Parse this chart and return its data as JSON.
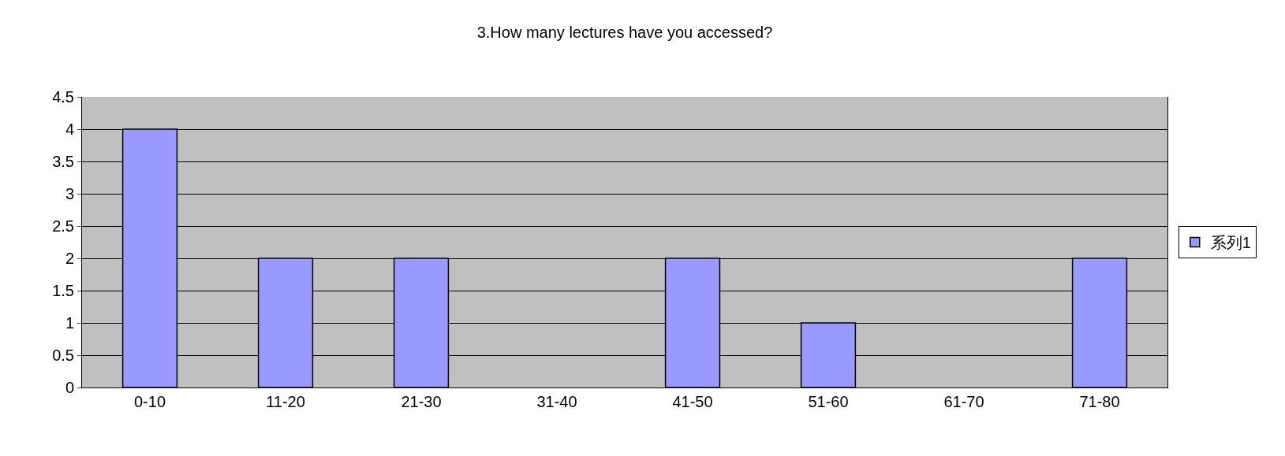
{
  "chart_data": {
    "type": "bar",
    "title": "3.How many lectures have you accessed?",
    "categories": [
      "0-10",
      "11-20",
      "21-30",
      "31-40",
      "41-50",
      "51-60",
      "61-70",
      "71-80"
    ],
    "series": [
      {
        "name": "系列1",
        "color": "#9999ff",
        "values": [
          4,
          2,
          2,
          0,
          2,
          1,
          0,
          2
        ]
      }
    ],
    "ylim": [
      0,
      4.5
    ],
    "yticks": [
      0,
      0.5,
      1,
      1.5,
      2,
      2.5,
      3,
      3.5,
      4,
      4.5
    ],
    "grid": "y",
    "legend": "right"
  }
}
